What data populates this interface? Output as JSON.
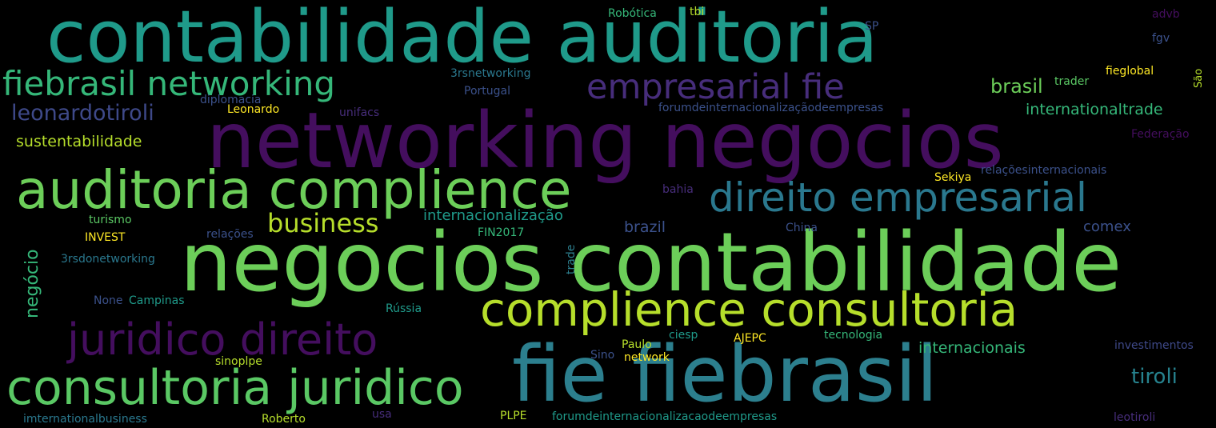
{
  "words": [
    "contabilidade auditoria",
    "networking negocios",
    "negocios contabilidade",
    "fie fiebrasil",
    "auditoria complience",
    "complience consultoria",
    "consultoria juridico",
    "direito empresarial",
    "fiebrasil networking",
    "empresarial fie",
    "juridico direito",
    "leonardotiroli",
    "business",
    "brasil",
    "tiroli",
    "internacionais",
    "internationaltrade",
    "sustentabilidade",
    "internacionalização",
    "negócio",
    "brazil",
    "comex",
    "3rsnetworking",
    "Portugal",
    "diplomacia",
    "Leonardo",
    "unifacs",
    "forumdeinternacionalizaçãodeempresas",
    "Robótica",
    "tbi",
    "SP",
    "advb",
    "fgv",
    "fieglobal",
    "trader",
    "São",
    "Federação",
    "relaçõesinternacionais",
    "Sekiya",
    "bahia",
    "turismo",
    "INVEST",
    "relações",
    "FIN2017",
    "China",
    "3rsdonetworking",
    "trade",
    "None",
    "Campinas",
    "Rússia",
    "ciesp",
    "Paulo",
    "AJEPC",
    "tecnologia",
    "investimentos",
    "Sino",
    "network",
    "sinoplpe",
    "imternationalbusiness",
    "usa",
    "PLPE",
    "forumdeinternacionalizacaodeempresas",
    "leotiroli",
    "Roberto"
  ]
}
